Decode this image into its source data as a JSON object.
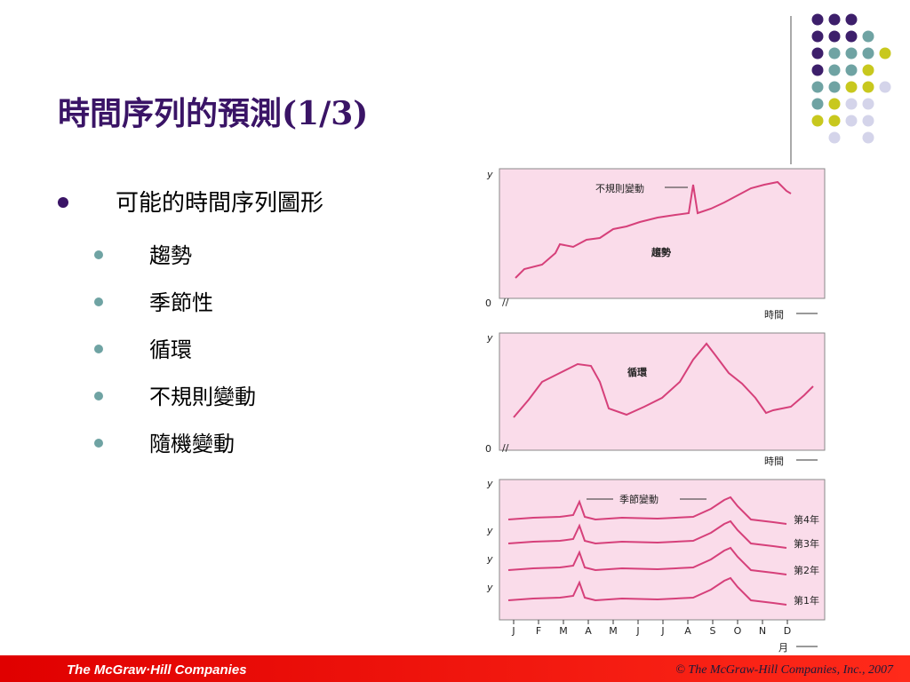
{
  "title": "時間序列的預測(1/3)",
  "bullets": [
    {
      "text": "可能的時間序列圖形",
      "items": [
        "趨勢",
        "季節性",
        "循環",
        "不規則變動",
        "隨機變動"
      ]
    }
  ],
  "figure": {
    "trend_panel": {
      "y_label": "y",
      "origin": "0",
      "x_label": "時間",
      "annotation": "不規則變動",
      "label": "趨勢"
    },
    "cycle_panel": {
      "y_label": "y",
      "origin": "0",
      "x_label": "時間",
      "label": "循環"
    },
    "seasonal_panel": {
      "y_labels": [
        "y",
        "y",
        "y",
        "y"
      ],
      "annotation": "季節變動",
      "series_labels": [
        "第4年",
        "第3年",
        "第2年",
        "第1年"
      ],
      "months": [
        "J",
        "F",
        "M",
        "A",
        "M",
        "J",
        "J",
        "A",
        "S",
        "O",
        "N",
        "D"
      ],
      "x_label": "月"
    }
  },
  "footer": {
    "logo": "The McGraw·Hill Companies",
    "copyright": "© The McGraw-Hill Companies, Inc., 2007"
  }
}
